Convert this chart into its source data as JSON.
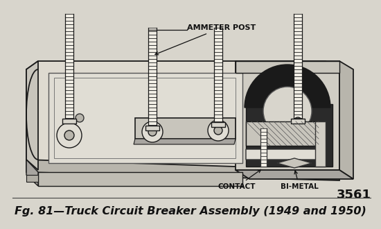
{
  "title": "Fg. 81—Truck Circuit Breaker Assembly (1949 and 1950)",
  "figure_number": "3561",
  "label_ammeter": "AMMETER POST",
  "label_contact": "CONTACT",
  "label_bimetal": "BI-METAL",
  "bg_color": "#d8d5cc",
  "drawing_bg": "#e8e5dc",
  "border_color": "#1a1a1a",
  "text_color": "#111111",
  "title_color": "#111111",
  "fig_width": 5.5,
  "fig_height": 3.3,
  "dpi": 100,
  "title_fontsize": 11.5,
  "label_fontsize": 7.5,
  "number_fontsize": 13
}
